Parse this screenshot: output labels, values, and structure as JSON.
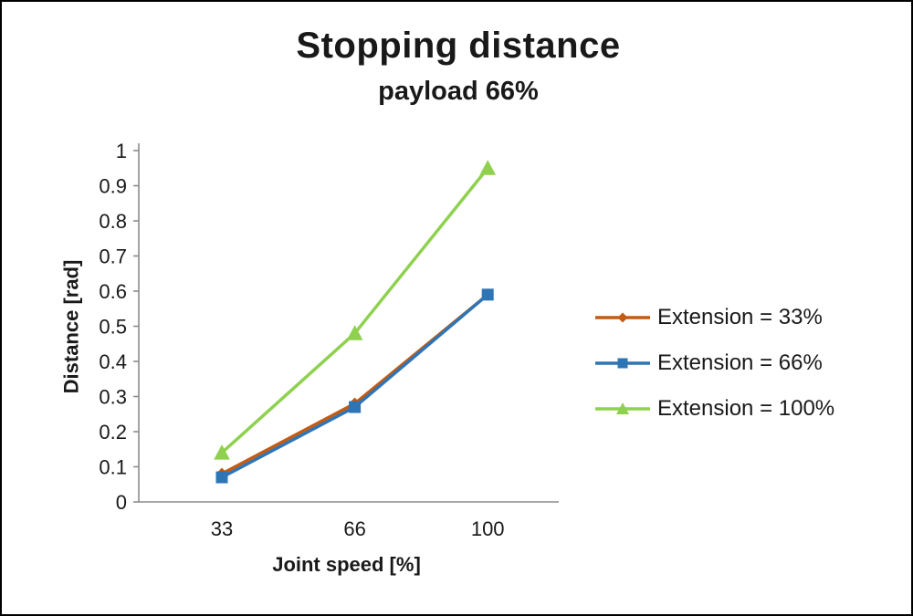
{
  "page": {
    "background": "#ffffff",
    "frame_border": "#000000"
  },
  "chart_data": {
    "type": "line",
    "title": "Stopping distance",
    "subtitle": "payload 66%",
    "xlabel": "Joint speed [%]",
    "ylabel": "Distance [rad]",
    "categories": [
      "33",
      "66",
      "100"
    ],
    "ylim": [
      0,
      1
    ],
    "ytick_step": 0.1,
    "ytick_labels": [
      "0",
      "0.1",
      "0.2",
      "0.3",
      "0.4",
      "0.5",
      "0.6",
      "0.7",
      "0.8",
      "0.9",
      "1"
    ],
    "grid": false,
    "legend_position": "right",
    "axis_color": "#8c8c8c",
    "text_color": "#191919",
    "series": [
      {
        "name": "Extension = 33%",
        "color": "#c55a11",
        "marker": "diamond",
        "values": [
          0.08,
          0.28,
          0.59
        ]
      },
      {
        "name": "Extension = 66%",
        "color": "#2e75b6",
        "marker": "square",
        "values": [
          0.07,
          0.27,
          0.59
        ]
      },
      {
        "name": "Extension = 100%",
        "color": "#8fd14f",
        "marker": "triangle",
        "values": [
          0.14,
          0.48,
          0.95
        ]
      }
    ]
  }
}
